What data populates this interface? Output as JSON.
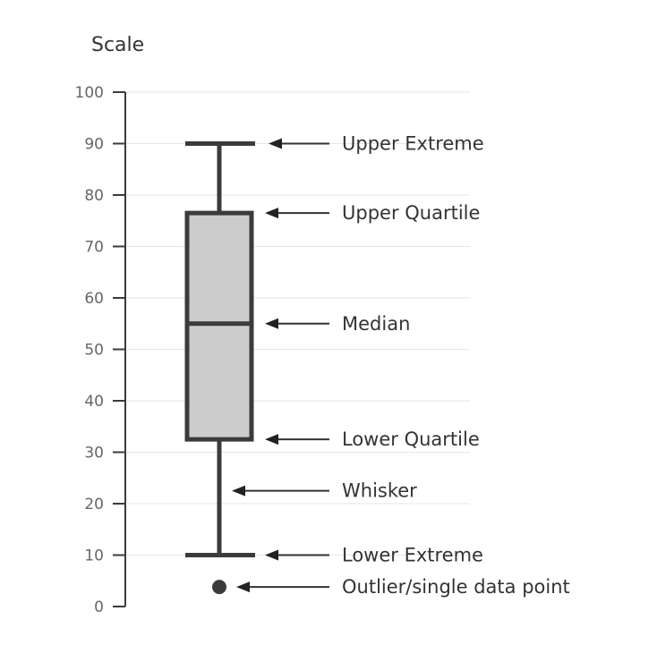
{
  "chart_data": {
    "type": "box",
    "ylabel": "Scale",
    "ylim": [
      0,
      100
    ],
    "yticks": [
      0,
      10,
      20,
      30,
      40,
      50,
      60,
      70,
      80,
      90,
      100
    ],
    "grid": true,
    "box": {
      "lower_extreme": 10,
      "lower_quartile": 32.5,
      "median": 55,
      "upper_quartile": 76.5,
      "upper_extreme": 90,
      "outliers": [
        3.8
      ]
    },
    "annotations": [
      {
        "key": "upper_extreme",
        "text": "Upper Extreme",
        "value": 90
      },
      {
        "key": "upper_quartile",
        "text": "Upper Quartile",
        "value": 76.5
      },
      {
        "key": "median",
        "text": "Median",
        "value": 55
      },
      {
        "key": "lower_quartile",
        "text": "Lower Quartile",
        "value": 32.5
      },
      {
        "key": "whisker",
        "text": "Whisker",
        "value": 22.5
      },
      {
        "key": "lower_extreme",
        "text": "Lower Extreme",
        "value": 10
      },
      {
        "key": "outlier",
        "text": "Outlier/single data point",
        "value": 3.8
      }
    ],
    "colors": {
      "box_fill": "#cccccc",
      "stroke": "#3b3b3b",
      "grid": "#e6e6e6",
      "text": "#333333",
      "tick_text": "#666666"
    }
  }
}
